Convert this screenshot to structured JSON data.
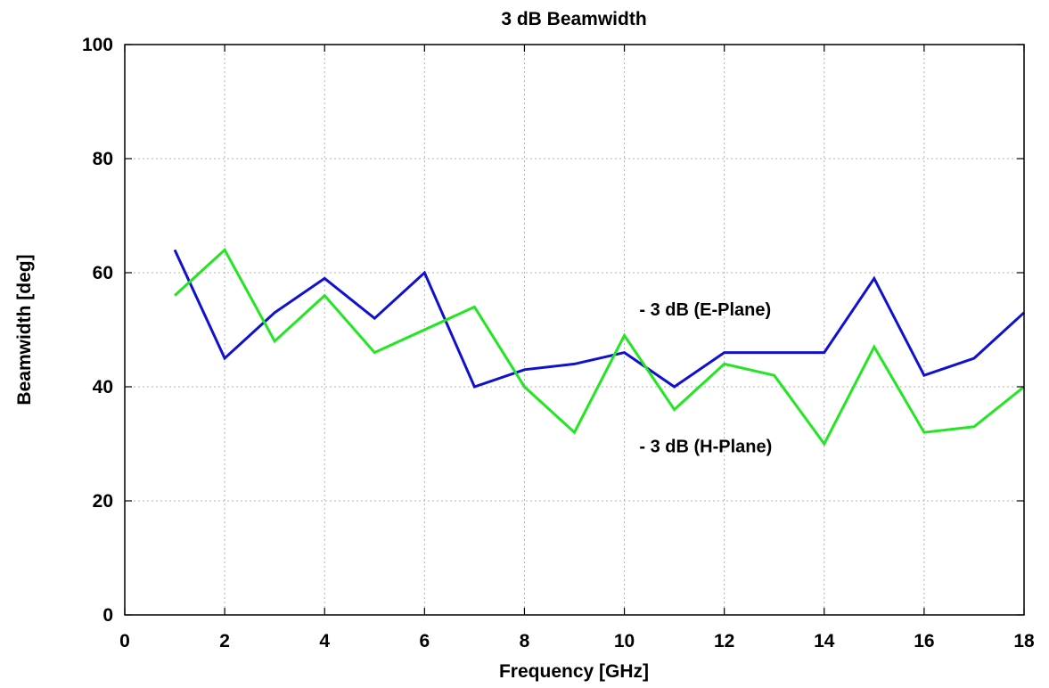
{
  "chart_data": {
    "type": "line",
    "title": "3 dB Beamwidth",
    "xlabel": "Frequency [GHz]",
    "ylabel": "Beamwidth [deg]",
    "xlim": [
      0,
      18
    ],
    "ylim": [
      0,
      100
    ],
    "xticks": [
      0,
      2,
      4,
      6,
      8,
      10,
      12,
      14,
      16,
      18
    ],
    "yticks": [
      0,
      20,
      40,
      60,
      80,
      100
    ],
    "grid": true,
    "x": [
      1,
      2,
      3,
      4,
      5,
      6,
      7,
      8,
      9,
      10,
      11,
      12,
      13,
      14,
      15,
      16,
      17,
      18
    ],
    "series": [
      {
        "color": "#1010d0",
        "values": [
          64,
          45,
          53,
          59,
          52,
          60,
          40,
          43,
          44,
          46,
          40,
          46,
          46,
          46,
          59,
          42,
          45,
          53
        ]
      },
      {
        "color": "#22e622",
        "values": [
          56,
          64,
          48,
          56,
          46,
          50,
          54,
          40,
          32,
          49,
          36,
          44,
          42,
          30,
          47,
          32,
          33,
          40
        ]
      }
    ],
    "annotations": [
      {
        "text": "- 3 dB (E-Plane)",
        "x": 10.3,
        "y": 52.5
      },
      {
        "text": "- 3 dB (H-Plane)",
        "x": 10.3,
        "y": 28.5
      }
    ]
  }
}
